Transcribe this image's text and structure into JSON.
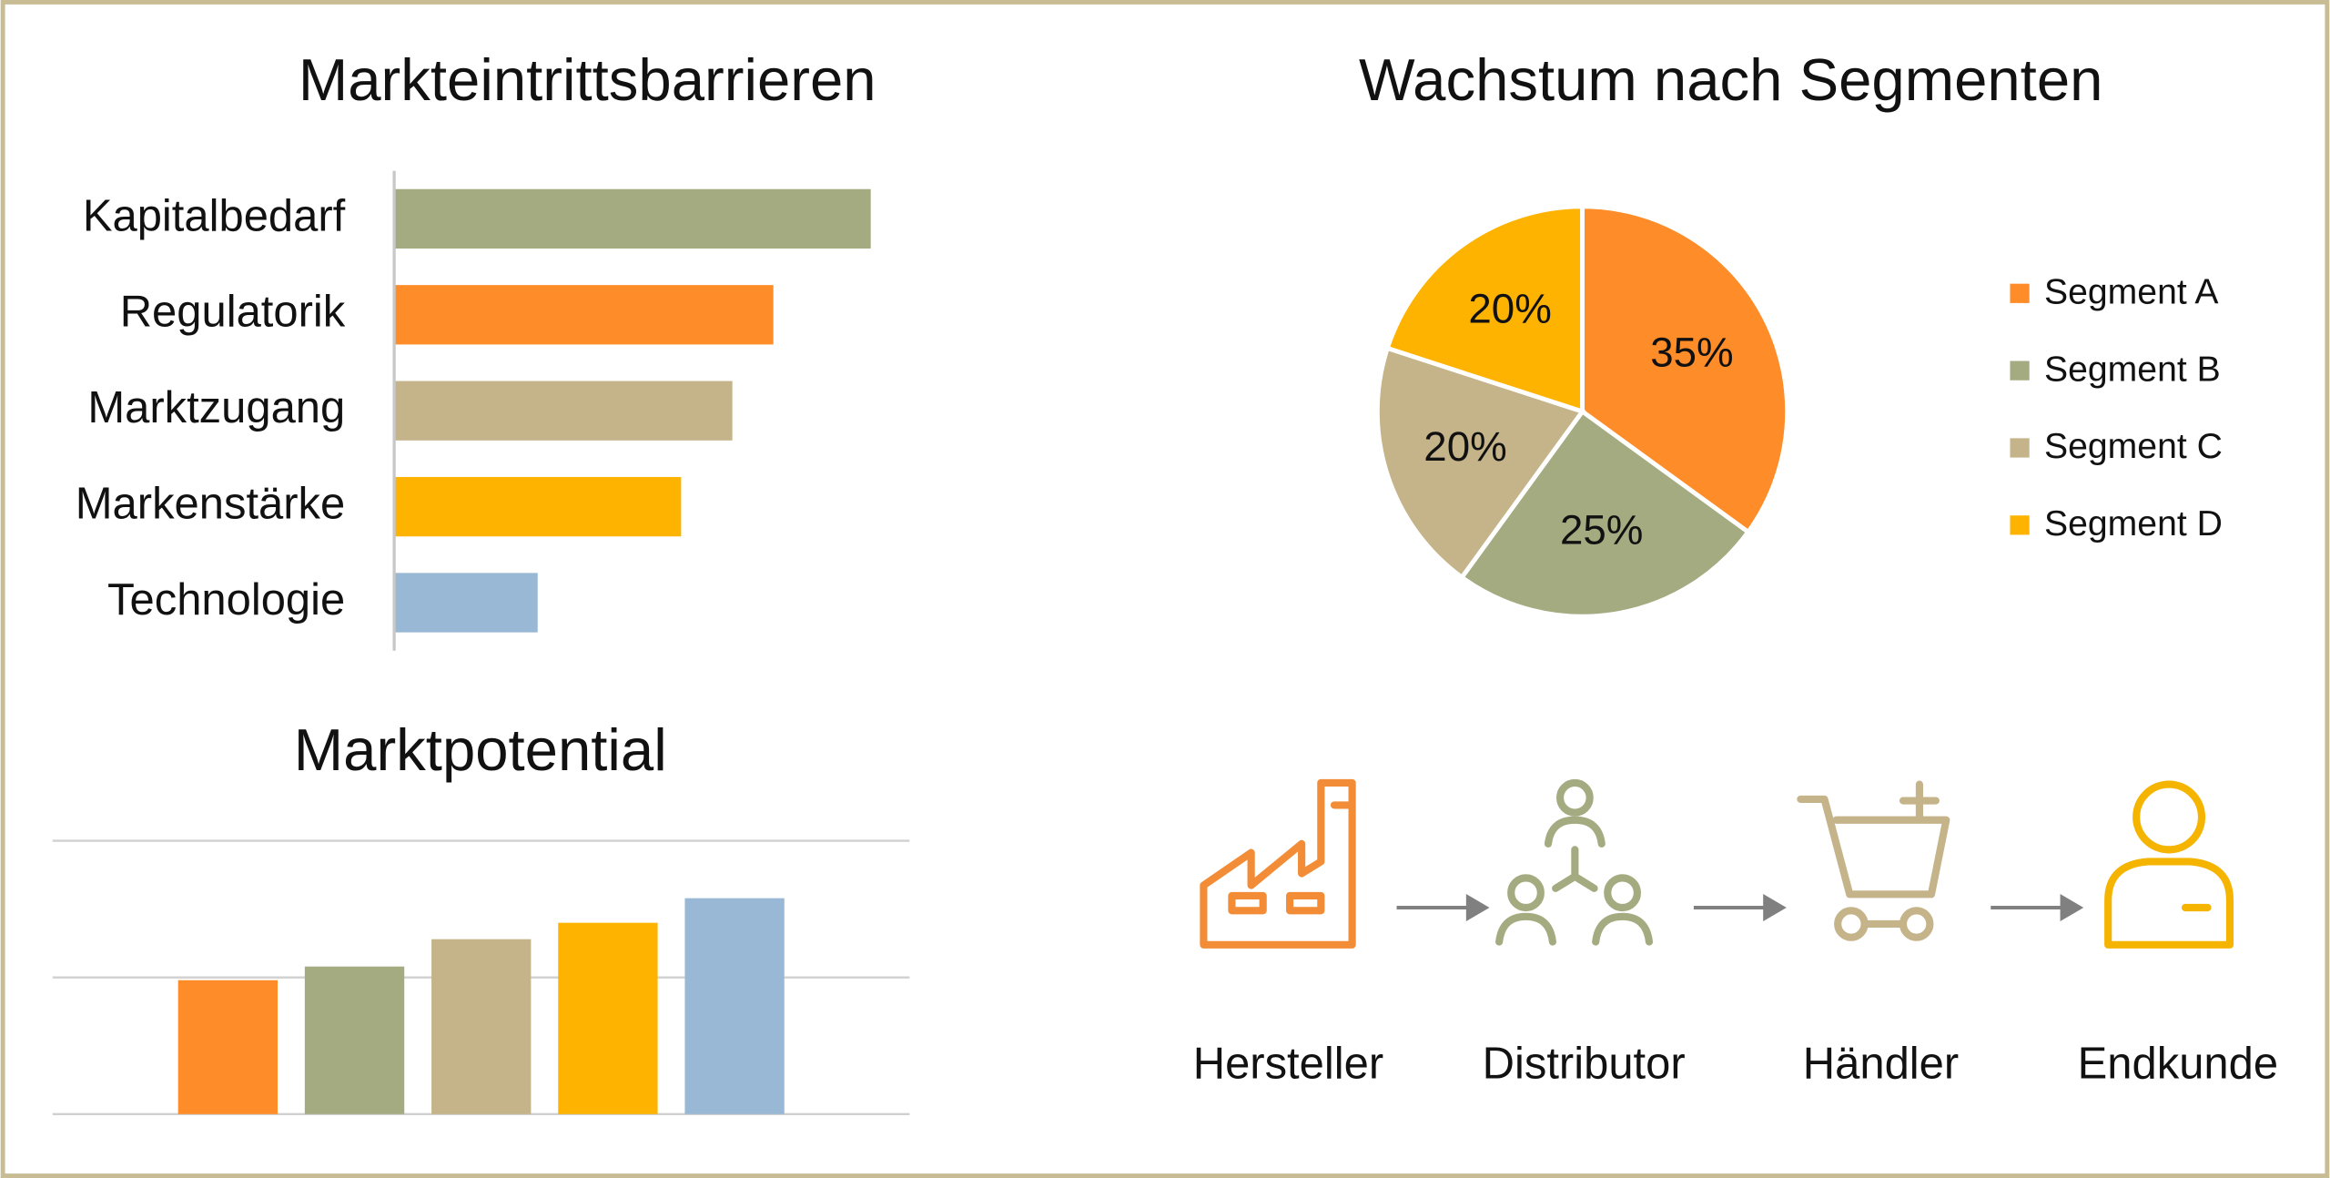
{
  "chart_data": [
    {
      "type": "hbar",
      "title": "Markteintrittsbarrieren",
      "categories": [
        "Kapitalbedarf",
        "Regulatorik",
        "Marktzugang",
        "Markenstärke",
        "Technologie"
      ],
      "values": [
        93,
        74,
        66,
        56,
        28
      ],
      "colors": [
        "#a4ab80",
        "#fe8c28",
        "#c5b489",
        "#fdb300",
        "#99b8d5"
      ],
      "xlim": [
        0,
        100
      ]
    },
    {
      "type": "pie",
      "title": "Wachstum nach Segmenten",
      "categories": [
        "Segment A",
        "Segment B",
        "Segment C",
        "Segment D"
      ],
      "values": [
        35,
        25,
        20,
        20
      ],
      "value_labels": [
        "35%",
        "25%",
        "20%",
        "20%"
      ],
      "colors": [
        "#fe8c28",
        "#a4ab80",
        "#c5b489",
        "#fdb300"
      ],
      "legend": "right"
    },
    {
      "type": "bar",
      "title": "Marktpotential",
      "categories": [
        null,
        null,
        null,
        null,
        null
      ],
      "values": [
        49,
        54,
        64,
        70,
        79
      ],
      "colors": [
        "#fe8c28",
        "#a4ab80",
        "#c5b489",
        "#fdb300",
        "#99b8d5"
      ],
      "ylim": [
        0,
        100
      ],
      "yticks": [
        0,
        50,
        100
      ],
      "grid": true,
      "tick_labels": false
    }
  ],
  "flow": {
    "steps": [
      {
        "label": "Hersteller"
      },
      {
        "label": "Distributor"
      },
      {
        "label": "Händler"
      },
      {
        "label": "Endkunde"
      }
    ]
  }
}
